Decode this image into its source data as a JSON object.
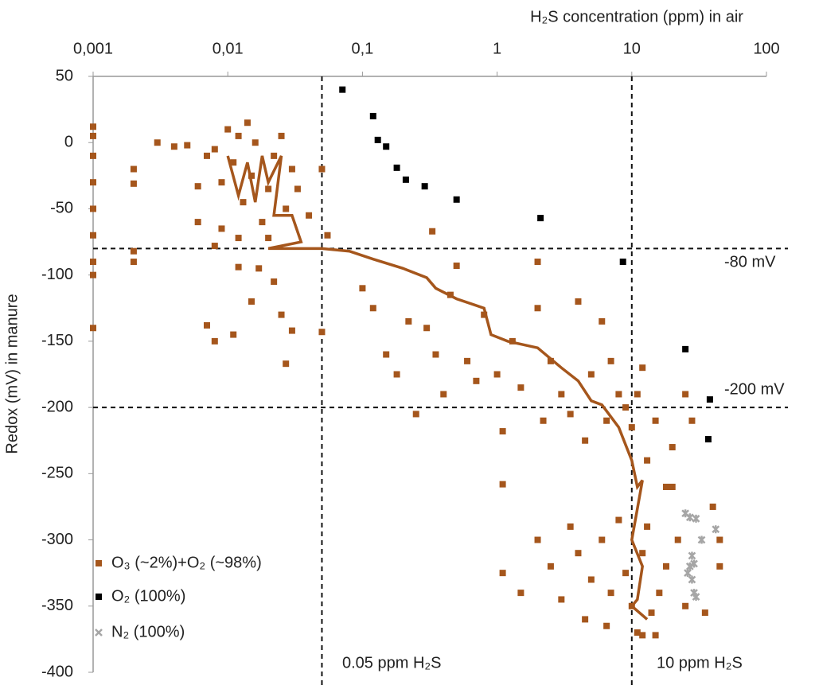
{
  "chart_data": {
    "type": "scatter",
    "title": "H₂S concentration (ppm) in air",
    "y_label": "Redox (mV) in manure",
    "log_x": true,
    "xlim": [
      0.001,
      100
    ],
    "xticks": [
      {
        "value": 0.001,
        "label": "0,001"
      },
      {
        "value": 0.01,
        "label": "0,01"
      },
      {
        "value": 0.1,
        "label": "0,1"
      },
      1,
      10,
      100
    ],
    "ylim": [
      -400,
      50
    ],
    "yticks": [
      50,
      0,
      -50,
      -100,
      -150,
      -200,
      -250,
      -300,
      -350,
      -400
    ],
    "legend": "bottom-left",
    "reference_lines": {
      "x": [
        0.05,
        10
      ],
      "y": [
        -80,
        -200
      ],
      "color": "#111"
    },
    "annotations": [
      "-80 mV",
      "-200 mV",
      "0.05 ppm H₂S",
      "10 ppm H₂S"
    ],
    "series": [
      {
        "name": "O₃ (~2%)+O₂ (~98%)",
        "color": "#a5561c",
        "marker": "square",
        "x": [
          0.001,
          0.001,
          0.001,
          0.001,
          0.001,
          0.001,
          0.001,
          0.001,
          0.001,
          0.002,
          0.002,
          0.003,
          0.004,
          0.005,
          0.006,
          0.007,
          0.008,
          0.009,
          0.01,
          0.011,
          0.012,
          0.013,
          0.014,
          0.015,
          0.016,
          0.018,
          0.02,
          0.022,
          0.025,
          0.027,
          0.03,
          0.033,
          0.04,
          0.05,
          0.055,
          0.006,
          0.009,
          0.012,
          0.02,
          0.008,
          0.002,
          0.002,
          0.007,
          0.008,
          0.011,
          0.012,
          0.015,
          0.017,
          0.022,
          0.025,
          0.03,
          0.027,
          0.05,
          0.33,
          0.1,
          0.12,
          0.15,
          0.18,
          0.22,
          0.25,
          0.3,
          0.35,
          0.4,
          0.45,
          0.5,
          0.6,
          0.7,
          0.8,
          1.0,
          1.1,
          1.1,
          1.3,
          1.5,
          2,
          2,
          2.2,
          2.5,
          3,
          3.5,
          4,
          4.5,
          5,
          6,
          6.5,
          7,
          8,
          9,
          10,
          11,
          12,
          13,
          15,
          18,
          20,
          25,
          28,
          1.1,
          1.5,
          2,
          2.5,
          3,
          3.5,
          4,
          4.5,
          5,
          6,
          6.5,
          7,
          8,
          9,
          10,
          11,
          12,
          13,
          14,
          16,
          18,
          20,
          22,
          25,
          35,
          40,
          45,
          45,
          15,
          12
        ],
        "values": [
          12,
          5,
          -10,
          -30,
          -50,
          -70,
          -90,
          -100,
          -140,
          -20,
          -31,
          0,
          -3,
          -2,
          -33,
          -10,
          -5,
          -30,
          10,
          -15,
          5,
          -45,
          15,
          -25,
          0,
          -60,
          -35,
          -10,
          5,
          -50,
          -20,
          -35,
          -55,
          -20,
          -70,
          -60,
          -65,
          -72,
          -72,
          -78,
          -82,
          -90,
          -138,
          -150,
          -145,
          -94,
          -120,
          -95,
          -105,
          -130,
          -142,
          -167,
          -143,
          -67,
          -110,
          -125,
          -160,
          -175,
          -135,
          -205,
          -140,
          -160,
          -190,
          -115,
          -93,
          -165,
          -180,
          -130,
          -175,
          -218,
          -258,
          -150,
          -185,
          -90,
          -125,
          -210,
          -165,
          -190,
          -205,
          -120,
          -225,
          -175,
          -135,
          -210,
          -165,
          -190,
          -200,
          -215,
          -190,
          -170,
          -240,
          -210,
          -260,
          -230,
          -190,
          -210,
          -325,
          -340,
          -300,
          -320,
          -345,
          -290,
          -310,
          -360,
          -330,
          -300,
          -365,
          -340,
          -285,
          -325,
          -350,
          -370,
          -310,
          -290,
          -355,
          -340,
          -320,
          -260,
          -300,
          -350,
          -355,
          -275,
          -300,
          -320,
          -372,
          -372
        ]
      },
      {
        "name": "O₂ (100%)",
        "color": "#000000",
        "marker": "square",
        "x": [
          0.071,
          0.12,
          0.13,
          0.15,
          0.18,
          0.21,
          0.29,
          0.5,
          2.1,
          8.6,
          25,
          38,
          37
        ],
        "values": [
          40,
          20,
          2,
          -3,
          -19,
          -28,
          -33,
          -43,
          -57,
          -90,
          -156,
          -194,
          -224
        ]
      },
      {
        "name": "N₂ (100%)",
        "color": "#a6a6a6",
        "marker": "cross",
        "x": [
          25,
          27,
          30,
          28,
          29,
          26,
          28,
          29,
          30,
          33,
          42,
          27
        ],
        "values": [
          -280,
          -283,
          -284,
          -312,
          -318,
          -325,
          -330,
          -340,
          -343,
          -300,
          -292,
          -320
        ]
      }
    ],
    "trend": {
      "color": "#a5561c",
      "x": [
        0.01,
        0.012,
        0.014,
        0.016,
        0.018,
        0.02,
        0.025,
        0.022,
        0.03,
        0.035,
        0.02,
        0.05,
        0.08,
        0.12,
        0.2,
        0.3,
        0.35,
        0.5,
        0.8,
        0.9,
        1.2,
        2,
        3,
        4,
        5,
        6,
        8,
        10,
        11,
        12,
        10,
        12,
        11,
        10,
        13
      ],
      "values": [
        -10,
        -40,
        -15,
        -45,
        -10,
        -30,
        -10,
        -55,
        -55,
        -75,
        -80,
        -80,
        -82,
        -88,
        -95,
        -102,
        -110,
        -118,
        -125,
        -145,
        -150,
        -155,
        -170,
        -180,
        -195,
        -198,
        -215,
        -240,
        -260,
        -255,
        -300,
        -320,
        -345,
        -350,
        -360
      ]
    }
  }
}
